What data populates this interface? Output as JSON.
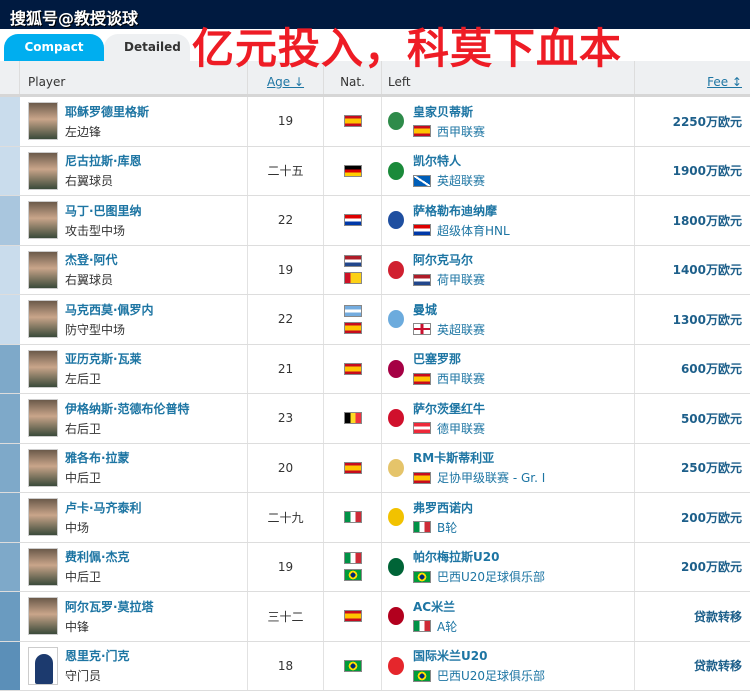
{
  "watermark": "搜狐号@教授谈球",
  "headline": "亿元投入，科莫下血本",
  "tabs": [
    "Compact",
    "Detailed"
  ],
  "headers": {
    "player": "Player",
    "age": "Age ↓",
    "nat": "Nat.",
    "left": "Left",
    "fee": "Fee ↕"
  },
  "rows": [
    {
      "name": "耶稣罗德里格斯",
      "pos": "左边锋",
      "age": "19",
      "nat": [
        "es"
      ],
      "club": "皇家贝蒂斯",
      "league_flag": "es",
      "league": "西甲联赛",
      "fee": "2250万欧元",
      "crest": "#2e8b4a",
      "strip": "#c9dcec"
    },
    {
      "name": "尼古拉斯·库恩",
      "pos": "右翼球员",
      "age": "二十五",
      "nat": [
        "de"
      ],
      "club": "凯尔特人",
      "league_flag": "sc",
      "league": "英超联赛",
      "fee": "1900万欧元",
      "crest": "#1a8a3a",
      "strip": "#c9dcec"
    },
    {
      "name": "马丁·巴图里纳",
      "pos": "攻击型中场",
      "age": "22",
      "nat": [
        "hr"
      ],
      "club": "萨格勒布迪纳摩",
      "league_flag": "hr",
      "league": "超级体育HNL",
      "fee": "1800万欧元",
      "crest": "#1f4fa0",
      "strip": "#a9c6de"
    },
    {
      "name": "杰登·阿代",
      "pos": "右翼球员",
      "age": "19",
      "nat": [
        "nl",
        "gw"
      ],
      "club": "阿尔克马尔",
      "league_flag": "nl",
      "league": "荷甲联赛",
      "fee": "1400万欧元",
      "crest": "#d02030",
      "strip": "#c9dcec"
    },
    {
      "name": "马克西莫·佩罗内",
      "pos": "防守型中场",
      "age": "22",
      "nat": [
        "ar",
        "es"
      ],
      "club": "曼城",
      "league_flag": "en",
      "league": "英超联赛",
      "fee": "1300万欧元",
      "crest": "#6cabdd",
      "strip": "#c9dcec"
    },
    {
      "name": "亚历克斯·瓦莱",
      "pos": "左后卫",
      "age": "21",
      "nat": [
        "es"
      ],
      "club": "巴塞罗那",
      "league_flag": "es",
      "league": "西甲联赛",
      "fee": "600万欧元",
      "crest": "#a50044",
      "strip": "#7ea9c9"
    },
    {
      "name": "伊格纳斯·范德布伦普特",
      "pos": "右后卫",
      "age": "23",
      "nat": [
        "be"
      ],
      "club": "萨尔茨堡红牛",
      "league_flag": "at",
      "league": "德甲联赛",
      "fee": "500万欧元",
      "crest": "#d0102c",
      "strip": "#7ea9c9"
    },
    {
      "name": "雅各布·拉蒙",
      "pos": "中后卫",
      "age": "20",
      "nat": [
        "es"
      ],
      "club": "RM卡斯蒂利亚",
      "league_flag": "es",
      "league": "足协甲级联赛 - Gr. I",
      "fee": "250万欧元",
      "crest": "#e5c46a",
      "strip": "#7ea9c9"
    },
    {
      "name": "卢卡·马齐泰利",
      "pos": "中场",
      "age": "二十九",
      "nat": [
        "it"
      ],
      "club": "弗罗西诺内",
      "league_flag": "it",
      "league": "B轮",
      "fee": "200万欧元",
      "crest": "#f2c200",
      "strip": "#7ea9c9"
    },
    {
      "name": "费利佩·杰克",
      "pos": "中后卫",
      "age": "19",
      "nat": [
        "it",
        "br"
      ],
      "club": "帕尔梅拉斯U20",
      "league_flag": "br",
      "league": "巴西U20足球俱乐部",
      "fee": "200万欧元",
      "crest": "#006437",
      "strip": "#7ea9c9"
    },
    {
      "name": "阿尔瓦罗·莫拉塔",
      "pos": "中锋",
      "age": "三十二",
      "nat": [
        "es"
      ],
      "club": "AC米兰",
      "league_flag": "it",
      "league": "A轮",
      "fee": "贷款转移",
      "crest": "#b2001e",
      "strip": "#6a9bc0"
    },
    {
      "name": "恩里克·门克",
      "pos": "守门员",
      "age": "18",
      "nat": [
        "br"
      ],
      "club": "国际米兰U20",
      "league_flag": "br",
      "league": "巴西U20足球俱乐部",
      "fee": "贷款转移",
      "crest": "#e5262c",
      "strip": "#5b8fb8",
      "blank": true
    }
  ]
}
